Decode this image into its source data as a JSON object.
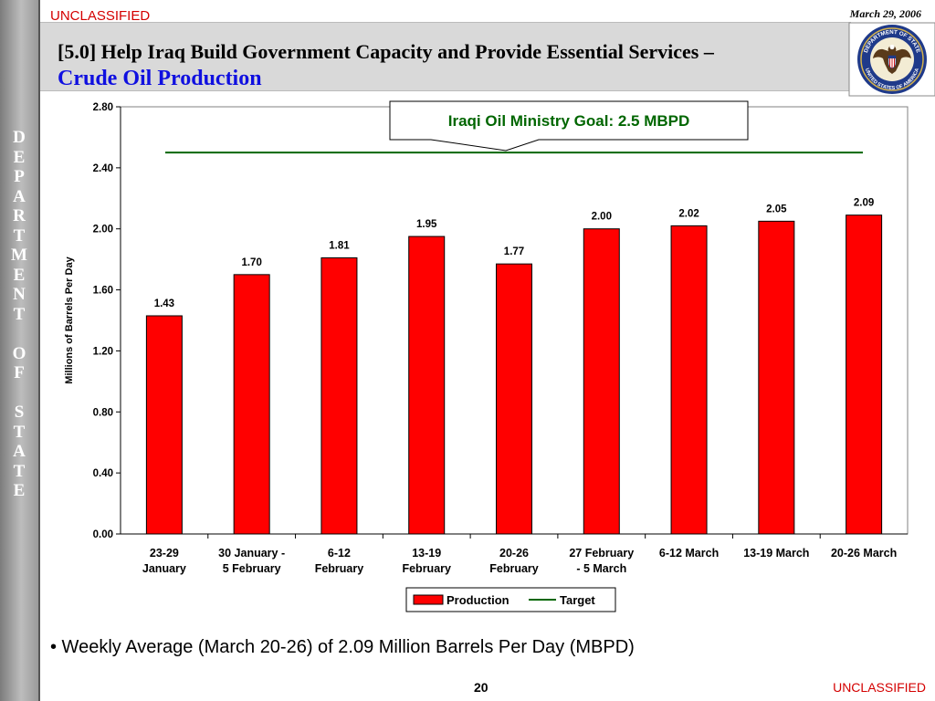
{
  "header": {
    "classification_top": "UNCLASSIFIED",
    "date": "March 29, 2006",
    "title_line1": "[5.0] Help Iraq Build Government Capacity and Provide Essential Services –",
    "title_line2": "Crude Oil Production"
  },
  "sidebar": {
    "letters": [
      "D",
      "E",
      "P",
      "A",
      "R",
      "T",
      "M",
      "E",
      "N",
      "T",
      "",
      "O",
      "F",
      "",
      "S",
      "T",
      "A",
      "T",
      "E"
    ]
  },
  "seal": {
    "text_top": "DEPARTMENT OF STATE",
    "text_bottom": "UNITED STATES OF AMERICA"
  },
  "chart_data": {
    "type": "bar",
    "ylabel": "Millions of Barrels Per Day",
    "ylim": [
      0,
      2.8
    ],
    "y_ticks": [
      "0.00",
      "0.40",
      "0.80",
      "1.20",
      "1.60",
      "2.00",
      "2.40",
      "2.80"
    ],
    "categories": [
      [
        "23-29",
        "January"
      ],
      [
        "30 January -",
        "5 February"
      ],
      [
        "6-12",
        "February"
      ],
      [
        "13-19",
        "February"
      ],
      [
        "20-26",
        "February"
      ],
      [
        "27 February",
        "- 5 March"
      ],
      [
        "6-12 March"
      ],
      [
        "13-19 March"
      ],
      [
        "20-26 March"
      ]
    ],
    "series": [
      {
        "name": "Production",
        "color": "#ff0000",
        "values": [
          1.43,
          1.7,
          1.81,
          1.95,
          1.77,
          2.0,
          2.02,
          2.05,
          2.09
        ],
        "value_labels": [
          "1.43",
          "1.70",
          "1.81",
          "1.95",
          "1.77",
          "2.00",
          "2.02",
          "2.05",
          "2.09"
        ]
      },
      {
        "name": "Target",
        "color": "#006600",
        "value": 2.5
      }
    ],
    "annotation": "Iraqi Oil Ministry Goal:  2.5 MBPD",
    "annotation_color": "#006600",
    "legend_position": "bottom-center",
    "grid": false
  },
  "footer": {
    "bullet": "• Weekly Average (March 20-26) of 2.09 Million Barrels Per Day (MBPD)",
    "page_number": "20",
    "classification_bottom": "UNCLASSIFIED"
  }
}
